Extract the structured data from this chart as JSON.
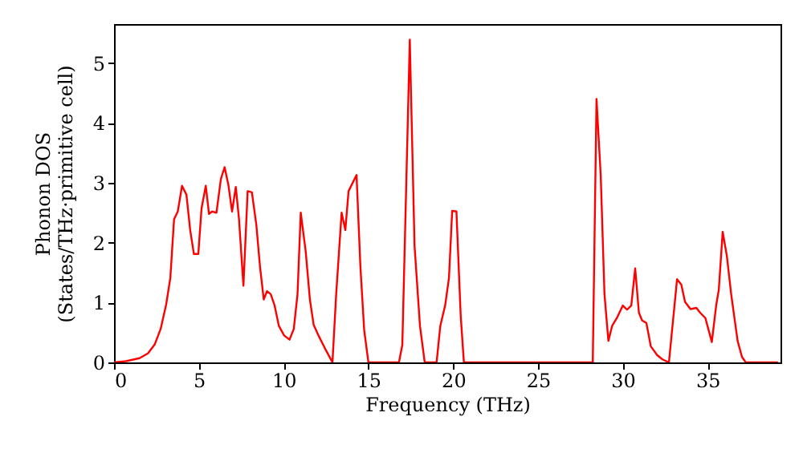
{
  "chart_data": {
    "type": "line",
    "xlabel": "Frequency (THz)",
    "ylabel": "Phonon DOS\n(States/THz·primitive cell)",
    "xlim": [
      0,
      39.3
    ],
    "ylim": [
      0,
      5.65
    ],
    "xticks": [
      0,
      5,
      10,
      15,
      20,
      25,
      30,
      35
    ],
    "yticks": [
      0,
      1,
      2,
      3,
      4,
      5
    ],
    "grid": false,
    "series": [
      {
        "color": "#ff0000",
        "x": [
          0,
          0.7,
          1.5,
          2,
          2.4,
          2.75,
          3.07,
          3.32,
          3.54,
          3.76,
          4.01,
          4.27,
          4.49,
          4.71,
          4.97,
          5.16,
          5.41,
          5.6,
          5.79,
          6.04,
          6.3,
          6.52,
          6.74,
          6.96,
          7.18,
          7.37,
          7.63,
          7.88,
          8.13,
          8.39,
          8.61,
          8.83,
          9.02,
          9.24,
          9.46,
          9.72,
          10.03,
          10.35,
          10.6,
          10.82,
          11.01,
          11.3,
          11.55,
          11.77,
          12.09,
          12.41,
          12.88,
          13.1,
          13.42,
          13.64,
          13.83,
          14.3,
          14.53,
          14.75,
          15,
          16.8,
          17,
          17.44,
          17.72,
          18.04,
          18.32,
          19.02,
          19.24,
          19.53,
          19.75,
          19.94,
          20.19,
          20.44,
          20.63,
          28.23,
          28.45,
          28.7,
          28.92,
          29.15,
          29.37,
          29.65,
          30,
          30.25,
          30.5,
          30.73,
          30.95,
          31.14,
          31.39,
          31.65,
          32.03,
          32.34,
          32.72,
          33.2,
          33.45,
          33.67,
          33.99,
          34.34,
          34.56,
          34.87,
          35.25,
          35.51,
          35.66,
          35.89,
          36.14,
          36.39,
          36.77,
          37.03,
          37.25,
          39.15
        ],
        "values": [
          0,
          0.02,
          0.07,
          0.15,
          0.3,
          0.56,
          0.96,
          1.41,
          2.39,
          2.52,
          2.95,
          2.8,
          2.21,
          1.81,
          1.81,
          2.57,
          2.95,
          2.48,
          2.52,
          2.5,
          3.06,
          3.26,
          2.97,
          2.52,
          2.93,
          2.39,
          1.28,
          2.86,
          2.84,
          2.3,
          1.59,
          1.05,
          1.19,
          1.14,
          0.96,
          0.61,
          0.45,
          0.38,
          0.56,
          1.14,
          2.5,
          1.86,
          1.05,
          0.63,
          0.43,
          0.25,
          0,
          1.14,
          2.5,
          2.21,
          2.86,
          3.13,
          1.59,
          0.54,
          0,
          0,
          0.29,
          5.39,
          1.95,
          0.61,
          0,
          0,
          0.61,
          0.96,
          1.41,
          2.53,
          2.52,
          0.79,
          0,
          0,
          4.4,
          3.11,
          1.14,
          0.36,
          0.61,
          0.74,
          0.95,
          0.88,
          0.95,
          1.57,
          0.83,
          0.7,
          0.66,
          0.27,
          0.12,
          0.05,
          0,
          1.39,
          1.3,
          1.01,
          0.89,
          0.91,
          0.83,
          0.74,
          0.34,
          0.96,
          1.21,
          2.18,
          1.77,
          1.14,
          0.36,
          0.09,
          0,
          0
        ]
      }
    ]
  }
}
